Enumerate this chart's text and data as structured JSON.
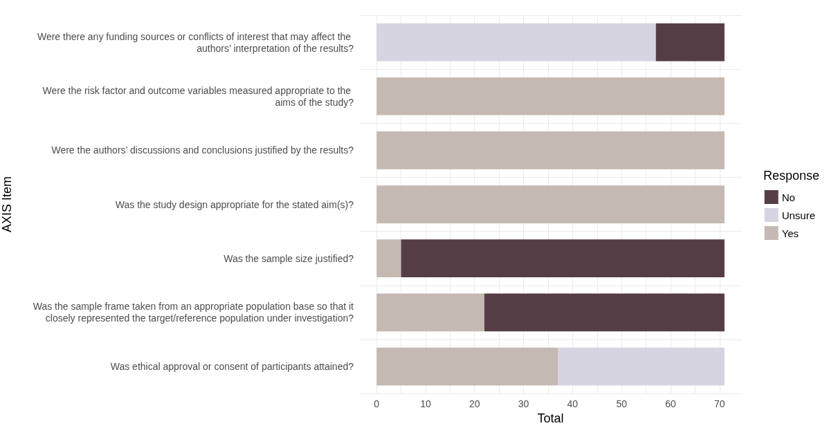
{
  "chart_data": {
    "type": "bar",
    "orientation": "horizontal",
    "stacked": true,
    "xlabel": "Total",
    "ylabel": "AXIS Item",
    "legend_title": "Response",
    "legend": "right",
    "grid": true,
    "categories": [
      "Were there any funding sources or conflicts of interest that may affect the authors’ interpretation of the results?",
      "Were the risk factor and outcome variables measured appropriate to the aims of the study?",
      "Were the authors’ discussions and conclusions justified by the results?",
      "Was the study design appropriate for the stated aim(s)?",
      "Was the sample size justified?",
      "Was the sample frame taken from an appropriate population base so that it closely represented the target/reference population under investigation?",
      "Was ethical approval or consent of participants attained?"
    ],
    "series": [
      {
        "name": "Yes",
        "color": "#c4bab3",
        "values": [
          0,
          71,
          71,
          71,
          5,
          22,
          37
        ]
      },
      {
        "name": "Unsure",
        "color": "#d6d4e0",
        "values": [
          57,
          0,
          0,
          0,
          0,
          0,
          34
        ]
      },
      {
        "name": "No",
        "color": "#553d45",
        "values": [
          14,
          0,
          0,
          0,
          66,
          49,
          0
        ]
      }
    ],
    "xlim": [
      -3.55,
      74.55
    ],
    "xticks": [
      0,
      {
        "value": 5,
        "label": null
      },
      10,
      {
        "value": 15,
        "label": null
      },
      20,
      {
        "value": 25,
        "label": null
      },
      30,
      {
        "value": 35,
        "label": null
      },
      40,
      {
        "value": 45,
        "label": null
      },
      50,
      {
        "value": 55,
        "label": null
      },
      60,
      {
        "value": 65,
        "label": null
      },
      70
    ]
  }
}
